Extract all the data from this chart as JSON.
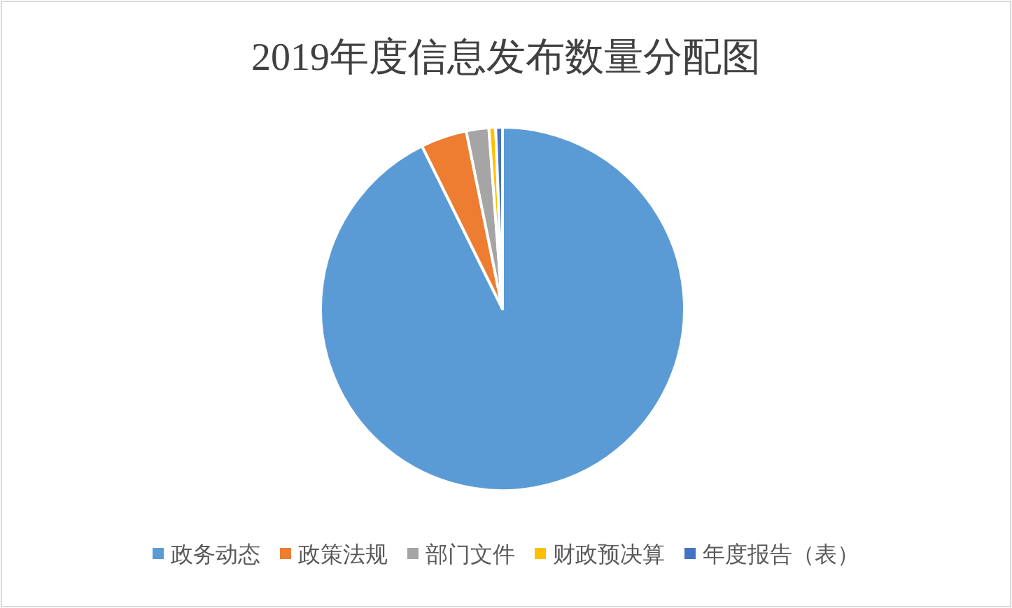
{
  "chart_data": {
    "type": "pie",
    "title": "2019年度信息发布数量分配图",
    "categories": [
      "政务动态",
      "政策法规",
      "部门文件",
      "财政预决算",
      "年度报告（表）"
    ],
    "values": [
      92.7,
      4.1,
      2.0,
      0.6,
      0.6
    ],
    "colors": [
      "#5b9bd5",
      "#ed7d31",
      "#a5a5a5",
      "#ffc000",
      "#4472c4"
    ],
    "legend": "bottom"
  }
}
